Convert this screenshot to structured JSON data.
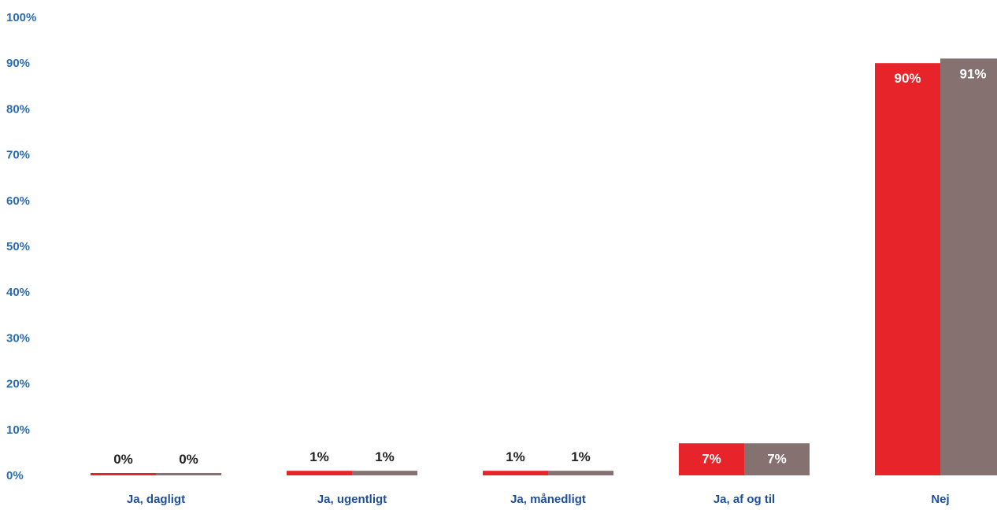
{
  "chart_data": {
    "type": "bar",
    "categories": [
      "Ja, dagligt",
      "Ja, ugentligt",
      "Ja, månedligt",
      "Ja, af og til",
      "Nej"
    ],
    "series": [
      {
        "values": [
          0,
          1,
          1,
          7,
          90
        ],
        "labels": [
          "0%",
          "1%",
          "1%",
          "7%",
          "90%"
        ],
        "color": "#e8242b"
      },
      {
        "values": [
          0,
          1,
          1,
          7,
          91
        ],
        "labels": [
          "0%",
          "1%",
          "1%",
          "7%",
          "91%"
        ],
        "color": "#847170"
      }
    ],
    "yticks": [
      "0%",
      "10%",
      "20%",
      "30%",
      "40%",
      "50%",
      "60%",
      "70%",
      "80%",
      "90%",
      "100%"
    ],
    "ylim": [
      0,
      100
    ],
    "grid": false,
    "legend": "none",
    "colors": {
      "axis_text": "#2a6db5",
      "category_text": "#1f4f99"
    }
  }
}
